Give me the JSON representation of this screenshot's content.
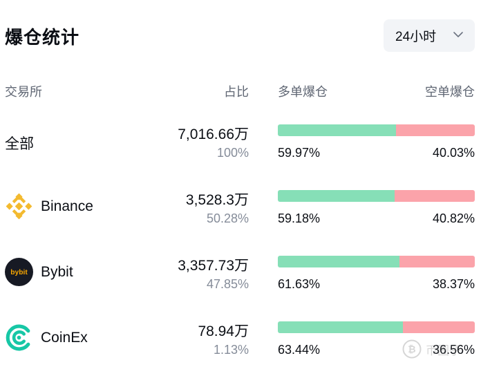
{
  "title": "爆仓统计",
  "time_range": {
    "selected": "24小时"
  },
  "columns": {
    "exchange": "交易所",
    "share": "占比",
    "long": "多单爆仓",
    "short": "空单爆仓"
  },
  "rows": [
    {
      "exchange": "全部",
      "amount": "7,016.66万",
      "share": "100%",
      "long_pct": "59.97%",
      "short_pct": "40.03%",
      "long_fraction": 0.5997
    },
    {
      "exchange": "Binance",
      "amount": "3,528.3万",
      "share": "50.28%",
      "long_pct": "59.18%",
      "short_pct": "40.82%",
      "long_fraction": 0.5918,
      "logo_icon": "binance-logo-icon"
    },
    {
      "exchange": "Bybit",
      "amount": "3,357.73万",
      "share": "47.85%",
      "long_pct": "61.63%",
      "short_pct": "38.37%",
      "long_fraction": 0.6163,
      "logo_icon": "bybit-logo-icon",
      "logo_text": "bybit"
    },
    {
      "exchange": "CoinEx",
      "amount": "78.94万",
      "share": "1.13%",
      "long_pct": "63.44%",
      "short_pct": "36.56%",
      "long_fraction": 0.6344,
      "logo_icon": "coinex-logo-icon"
    }
  ],
  "watermark": {
    "text": "币圈子"
  },
  "colors": {
    "long": "#86dfb7",
    "short": "#fba3aa",
    "binance": "#f3ba2f",
    "bybit_bg": "#171a24",
    "bybit_text": "#f7a600",
    "coinex": "#17c7a6"
  }
}
